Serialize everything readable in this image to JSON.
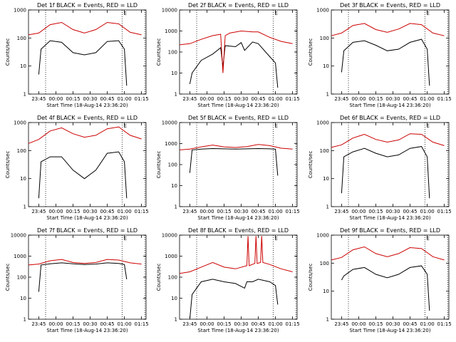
{
  "figure": {
    "colors": {
      "events": "#000000",
      "lld": "#cc0000"
    },
    "ylabel": "Counts/sec",
    "xlabel": "Start Time (18-Aug-14 23:36:20)",
    "marker_label": "E",
    "xticks": [
      "23:45",
      "00:00",
      "00:15",
      "00:30",
      "00:45",
      "01:00",
      "01:15"
    ]
  },
  "chart_data": [
    {
      "type": "line",
      "title": "Det 1f BLACK = Events, RED = LLD",
      "log_y": true,
      "ylim": [
        1,
        1000
      ],
      "yticks": [
        "1000",
        "100",
        "10",
        "1"
      ],
      "event_window": [
        "23:45",
        "01:02"
      ],
      "dotted_lines": [
        "23:51",
        "00:58"
      ],
      "series": [
        {
          "name": "Events",
          "color": "#000000",
          "x": [
            "23:45",
            "23:47",
            "23:55",
            "00:05",
            "00:15",
            "00:25",
            "00:35",
            "00:45",
            "00:55",
            "01:00",
            "01:02"
          ],
          "y": [
            5,
            40,
            80,
            70,
            30,
            25,
            30,
            75,
            80,
            40,
            2
          ]
        },
        {
          "name": "LLD",
          "color": "#cc0000",
          "x": [
            "23:36",
            "23:45",
            "23:55",
            "00:05",
            "00:15",
            "00:25",
            "00:35",
            "00:45",
            "00:55",
            "01:05",
            "01:15"
          ],
          "y": [
            130,
            150,
            300,
            360,
            200,
            150,
            200,
            360,
            320,
            160,
            130
          ]
        }
      ]
    },
    {
      "type": "line",
      "title": "Det 2f BLACK = Events, RED = LLD",
      "log_y": true,
      "ylim": [
        1,
        10000
      ],
      "yticks": [
        "10000",
        "1000",
        "100",
        "10",
        "1"
      ],
      "event_window": [
        "23:45",
        "01:02"
      ],
      "dotted_lines": [
        "23:51",
        "00:58"
      ],
      "series": [
        {
          "name": "Events",
          "color": "#000000",
          "x": [
            "23:45",
            "23:47",
            "23:55",
            "00:05",
            "00:12",
            "00:14",
            "00:16",
            "00:25",
            "00:30",
            "00:33",
            "00:40",
            "00:45",
            "00:55",
            "01:00",
            "01:02"
          ],
          "y": [
            3,
            10,
            40,
            80,
            160,
            20,
            200,
            180,
            280,
            120,
            300,
            250,
            60,
            30,
            2
          ]
        },
        {
          "name": "LLD",
          "color": "#cc0000",
          "x": [
            "23:36",
            "23:45",
            "23:55",
            "00:05",
            "00:12",
            "00:14",
            "00:16",
            "00:20",
            "00:30",
            "00:40",
            "00:45",
            "00:55",
            "01:05",
            "01:15"
          ],
          "y": [
            220,
            250,
            400,
            600,
            700,
            10,
            600,
            800,
            1000,
            900,
            900,
            500,
            320,
            250
          ]
        }
      ]
    },
    {
      "type": "line",
      "title": "Det 3f BLACK = Events, RED = LLD",
      "log_y": true,
      "ylim": [
        1,
        1000
      ],
      "yticks": [
        "1000",
        "100",
        "10",
        "1"
      ],
      "event_window": [
        "23:45",
        "01:02"
      ],
      "dotted_lines": [
        "23:51",
        "00:58"
      ],
      "series": [
        {
          "name": "Events",
          "color": "#000000",
          "x": [
            "23:45",
            "23:47",
            "23:55",
            "00:05",
            "00:15",
            "00:25",
            "00:35",
            "00:45",
            "00:55",
            "01:00",
            "01:02"
          ],
          "y": [
            6,
            35,
            70,
            80,
            55,
            35,
            40,
            70,
            90,
            40,
            2
          ]
        },
        {
          "name": "LLD",
          "color": "#cc0000",
          "x": [
            "23:36",
            "23:45",
            "23:55",
            "00:05",
            "00:15",
            "00:25",
            "00:35",
            "00:45",
            "00:55",
            "01:05",
            "01:15"
          ],
          "y": [
            120,
            150,
            280,
            330,
            200,
            160,
            210,
            330,
            300,
            150,
            120
          ]
        }
      ]
    },
    {
      "type": "line",
      "title": "Det 4f BLACK = Events, RED = LLD",
      "log_y": true,
      "ylim": [
        1,
        1000
      ],
      "yticks": [
        "1000",
        "100",
        "10",
        "1"
      ],
      "event_window": [
        "23:45",
        "01:02"
      ],
      "dotted_lines": [
        "23:51",
        "00:58"
      ],
      "series": [
        {
          "name": "Events",
          "color": "#000000",
          "x": [
            "23:45",
            "23:47",
            "23:55",
            "00:05",
            "00:15",
            "00:25",
            "00:35",
            "00:45",
            "00:55",
            "01:00",
            "01:02"
          ],
          "y": [
            2,
            40,
            60,
            60,
            20,
            10,
            20,
            80,
            90,
            40,
            2
          ]
        },
        {
          "name": "LLD",
          "color": "#cc0000",
          "x": [
            "23:36",
            "23:45",
            "23:55",
            "00:05",
            "00:15",
            "00:25",
            "00:35",
            "00:45",
            "00:55",
            "01:05",
            "01:15"
          ],
          "y": [
            180,
            250,
            500,
            650,
            400,
            300,
            350,
            600,
            700,
            350,
            260
          ]
        }
      ]
    },
    {
      "type": "line",
      "title": "Det 5f BLACK = Events, RED = LLD",
      "log_y": true,
      "ylim": [
        1,
        10000
      ],
      "yticks": [
        "10000",
        "1000",
        "100",
        "10",
        "1"
      ],
      "event_window": [
        "23:45",
        "01:02"
      ],
      "dotted_lines": [
        "23:51",
        "00:58"
      ],
      "series": [
        {
          "name": "Events",
          "color": "#000000",
          "x": [
            "23:45",
            "23:47",
            "23:55",
            "00:05",
            "00:15",
            "00:25",
            "00:35",
            "00:45",
            "00:55",
            "01:00",
            "01:02"
          ],
          "y": [
            40,
            500,
            550,
            580,
            560,
            550,
            560,
            580,
            560,
            540,
            30
          ]
        },
        {
          "name": "LLD",
          "color": "#cc0000",
          "x": [
            "23:36",
            "23:45",
            "23:55",
            "00:05",
            "00:15",
            "00:25",
            "00:35",
            "00:45",
            "00:55",
            "01:05",
            "01:15"
          ],
          "y": [
            500,
            550,
            700,
            850,
            700,
            650,
            720,
            900,
            800,
            600,
            550
          ]
        }
      ]
    },
    {
      "type": "line",
      "title": "Det 6f BLACK = Events, RED = LLD",
      "log_y": true,
      "ylim": [
        1,
        1000
      ],
      "yticks": [
        "1000",
        "100",
        "10",
        "1"
      ],
      "event_window": [
        "23:45",
        "01:02"
      ],
      "dotted_lines": [
        "23:51",
        "00:58"
      ],
      "series": [
        {
          "name": "Events",
          "color": "#000000",
          "x": [
            "23:45",
            "23:47",
            "23:55",
            "00:05",
            "00:15",
            "00:25",
            "00:35",
            "00:45",
            "00:55",
            "01:00",
            "01:02"
          ],
          "y": [
            3,
            60,
            90,
            120,
            80,
            60,
            70,
            120,
            140,
            60,
            2
          ]
        },
        {
          "name": "LLD",
          "color": "#cc0000",
          "x": [
            "23:36",
            "23:45",
            "23:55",
            "00:05",
            "00:15",
            "00:25",
            "00:35",
            "00:45",
            "00:55",
            "01:05",
            "01:15"
          ],
          "y": [
            130,
            160,
            280,
            380,
            250,
            200,
            240,
            400,
            380,
            200,
            150
          ]
        }
      ]
    },
    {
      "type": "line",
      "title": "Det 7f BLACK = Events, RED = LLD",
      "log_y": true,
      "ylim": [
        1,
        10000
      ],
      "yticks": [
        "10000",
        "1000",
        "100",
        "10",
        "1"
      ],
      "event_window": [
        "23:45",
        "01:02"
      ],
      "dotted_lines": [
        "23:51",
        "00:58"
      ],
      "series": [
        {
          "name": "Events",
          "color": "#000000",
          "x": [
            "23:45",
            "23:47",
            "23:55",
            "00:05",
            "00:15",
            "00:25",
            "00:35",
            "00:45",
            "00:55",
            "01:00",
            "01:02"
          ],
          "y": [
            20,
            380,
            430,
            480,
            430,
            400,
            420,
            480,
            450,
            400,
            80
          ]
        },
        {
          "name": "LLD",
          "color": "#cc0000",
          "x": [
            "23:36",
            "23:45",
            "23:55",
            "00:05",
            "00:15",
            "00:25",
            "00:35",
            "00:45",
            "00:55",
            "01:05",
            "01:15"
          ],
          "y": [
            380,
            420,
            600,
            700,
            500,
            450,
            500,
            700,
            650,
            480,
            420
          ]
        }
      ]
    },
    {
      "type": "line",
      "title": "Det 8f BLACK = Events, RED = LLD",
      "log_y": true,
      "ylim": [
        1,
        10000
      ],
      "yticks": [
        "10000",
        "1000",
        "100",
        "10",
        "1"
      ],
      "event_window": [
        "23:45",
        "01:02"
      ],
      "dotted_lines": [
        "23:51",
        "00:58"
      ],
      "series": [
        {
          "name": "Events",
          "color": "#000000",
          "x": [
            "23:45",
            "23:47",
            "23:55",
            "00:05",
            "00:15",
            "00:25",
            "00:33",
            "00:35",
            "00:40",
            "00:45",
            "00:55",
            "01:00",
            "01:02"
          ],
          "y": [
            1,
            15,
            60,
            80,
            60,
            50,
            30,
            60,
            60,
            80,
            60,
            40,
            5
          ]
        },
        {
          "name": "LLD",
          "color": "#cc0000",
          "x": [
            "23:36",
            "23:45",
            "23:55",
            "00:05",
            "00:15",
            "00:25",
            "00:35",
            "00:36",
            "00:37",
            "00:42",
            "00:43",
            "00:44",
            "00:47",
            "00:48",
            "00:49",
            "00:55",
            "01:05",
            "01:15"
          ],
          "y": [
            150,
            180,
            300,
            500,
            300,
            250,
            350,
            9000,
            350,
            450,
            9000,
            450,
            500,
            9000,
            500,
            400,
            250,
            180
          ]
        }
      ]
    },
    {
      "type": "line",
      "title": "Det 9f BLACK = Events, RED = LLD",
      "log_y": true,
      "ylim": [
        1,
        1000
      ],
      "yticks": [
        "1000",
        "100",
        "10",
        "1"
      ],
      "event_window": [
        "23:45",
        "01:02"
      ],
      "dotted_lines": [
        "23:51",
        "00:58"
      ],
      "series": [
        {
          "name": "Events",
          "color": "#000000",
          "x": [
            "23:45",
            "23:47",
            "23:55",
            "00:05",
            "00:15",
            "00:25",
            "00:35",
            "00:45",
            "00:55",
            "01:00",
            "01:02"
          ],
          "y": [
            25,
            35,
            60,
            70,
            40,
            30,
            40,
            70,
            80,
            40,
            2
          ]
        },
        {
          "name": "LLD",
          "color": "#cc0000",
          "x": [
            "23:36",
            "23:45",
            "23:55",
            "00:05",
            "00:15",
            "00:25",
            "00:35",
            "00:45",
            "00:55",
            "01:05",
            "01:15"
          ],
          "y": [
            130,
            160,
            300,
            380,
            220,
            170,
            220,
            360,
            330,
            170,
            130
          ]
        }
      ]
    }
  ]
}
